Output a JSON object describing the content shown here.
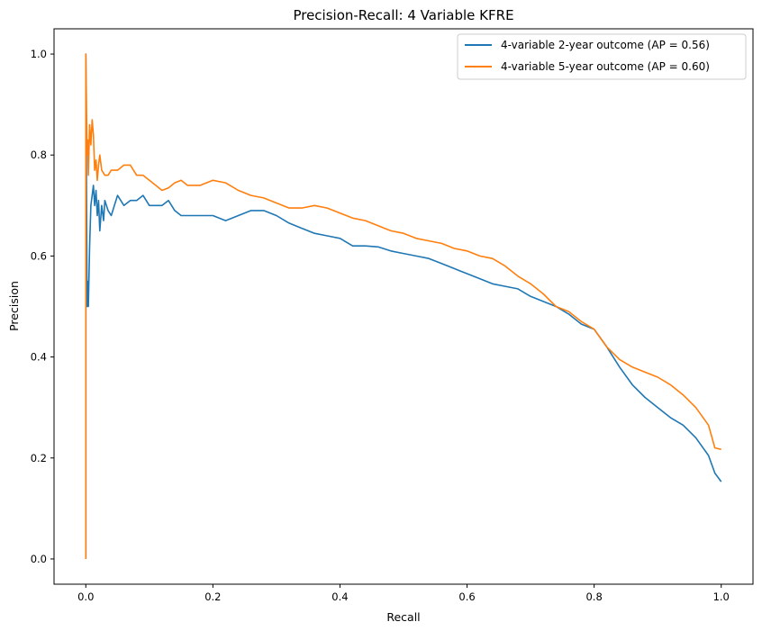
{
  "chart_data": {
    "type": "line",
    "title": "Precision-Recall: 4 Variable KFRE",
    "xlabel": "Recall",
    "ylabel": "Precision",
    "xlim": [
      -0.05,
      1.05
    ],
    "ylim": [
      -0.05,
      1.05
    ],
    "xticks": [
      0.0,
      0.2,
      0.4,
      0.6,
      0.8,
      1.0
    ],
    "yticks": [
      0.0,
      0.2,
      0.4,
      0.6,
      0.8,
      1.0
    ],
    "xtick_labels": [
      "0.0",
      "0.2",
      "0.4",
      "0.6",
      "0.8",
      "1.0"
    ],
    "ytick_labels": [
      "0.0",
      "0.2",
      "0.4",
      "0.6",
      "0.8",
      "1.0"
    ],
    "grid": false,
    "legend_position": "top-right",
    "series": [
      {
        "name": "4-variable 2-year outcome (AP = 0.56)",
        "color": "#1f77b4",
        "x": [
          0.0,
          0.0,
          0.002,
          0.003,
          0.004,
          0.006,
          0.008,
          0.01,
          0.012,
          0.014,
          0.016,
          0.018,
          0.02,
          0.022,
          0.025,
          0.028,
          0.03,
          0.035,
          0.04,
          0.045,
          0.05,
          0.06,
          0.07,
          0.08,
          0.09,
          0.1,
          0.11,
          0.12,
          0.13,
          0.14,
          0.15,
          0.16,
          0.18,
          0.2,
          0.22,
          0.24,
          0.26,
          0.28,
          0.3,
          0.32,
          0.34,
          0.36,
          0.38,
          0.4,
          0.42,
          0.44,
          0.46,
          0.48,
          0.5,
          0.52,
          0.54,
          0.56,
          0.58,
          0.6,
          0.62,
          0.64,
          0.66,
          0.68,
          0.7,
          0.72,
          0.74,
          0.76,
          0.78,
          0.8,
          0.82,
          0.84,
          0.86,
          0.88,
          0.9,
          0.92,
          0.94,
          0.96,
          0.98,
          0.99,
          1.0
        ],
        "y": [
          0.0,
          1.0,
          0.5,
          0.55,
          0.5,
          0.62,
          0.7,
          0.72,
          0.74,
          0.7,
          0.73,
          0.68,
          0.71,
          0.65,
          0.7,
          0.67,
          0.71,
          0.69,
          0.68,
          0.7,
          0.72,
          0.7,
          0.71,
          0.71,
          0.72,
          0.7,
          0.7,
          0.7,
          0.71,
          0.69,
          0.68,
          0.68,
          0.68,
          0.68,
          0.67,
          0.68,
          0.69,
          0.69,
          0.68,
          0.665,
          0.655,
          0.645,
          0.64,
          0.635,
          0.62,
          0.62,
          0.618,
          0.61,
          0.605,
          0.6,
          0.595,
          0.585,
          0.575,
          0.565,
          0.555,
          0.545,
          0.54,
          0.535,
          0.52,
          0.51,
          0.5,
          0.485,
          0.465,
          0.455,
          0.42,
          0.38,
          0.345,
          0.32,
          0.3,
          0.28,
          0.265,
          0.24,
          0.205,
          0.17,
          0.153
        ]
      },
      {
        "name": "4-variable 5-year outcome (AP = 0.60)",
        "color": "#ff7f0e",
        "x": [
          0.0,
          0.0,
          0.002,
          0.003,
          0.004,
          0.006,
          0.008,
          0.01,
          0.012,
          0.014,
          0.016,
          0.018,
          0.02,
          0.022,
          0.025,
          0.03,
          0.035,
          0.04,
          0.05,
          0.06,
          0.07,
          0.08,
          0.09,
          0.1,
          0.11,
          0.12,
          0.13,
          0.14,
          0.15,
          0.16,
          0.18,
          0.2,
          0.22,
          0.24,
          0.26,
          0.28,
          0.3,
          0.32,
          0.34,
          0.36,
          0.38,
          0.4,
          0.42,
          0.44,
          0.46,
          0.48,
          0.5,
          0.52,
          0.54,
          0.56,
          0.58,
          0.6,
          0.62,
          0.64,
          0.66,
          0.68,
          0.7,
          0.72,
          0.74,
          0.76,
          0.78,
          0.8,
          0.82,
          0.84,
          0.86,
          0.88,
          0.9,
          0.92,
          0.94,
          0.96,
          0.98,
          0.99,
          1.0
        ],
        "y": [
          0.0,
          1.0,
          0.8,
          0.83,
          0.76,
          0.86,
          0.82,
          0.87,
          0.84,
          0.77,
          0.79,
          0.75,
          0.78,
          0.8,
          0.77,
          0.76,
          0.76,
          0.77,
          0.77,
          0.78,
          0.78,
          0.76,
          0.76,
          0.75,
          0.74,
          0.73,
          0.735,
          0.745,
          0.75,
          0.74,
          0.74,
          0.75,
          0.745,
          0.73,
          0.72,
          0.715,
          0.705,
          0.695,
          0.695,
          0.7,
          0.695,
          0.685,
          0.675,
          0.67,
          0.66,
          0.65,
          0.645,
          0.635,
          0.63,
          0.625,
          0.615,
          0.61,
          0.6,
          0.595,
          0.58,
          0.56,
          0.545,
          0.525,
          0.5,
          0.49,
          0.47,
          0.455,
          0.42,
          0.395,
          0.38,
          0.37,
          0.36,
          0.345,
          0.325,
          0.3,
          0.265,
          0.22,
          0.217
        ]
      }
    ]
  }
}
